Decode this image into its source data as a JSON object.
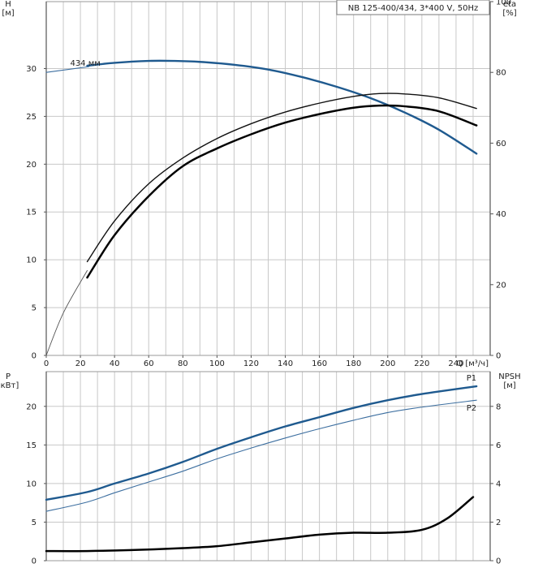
{
  "chart_data": [
    {
      "type": "line",
      "title": "NB 125-400/434, 3*400 V, 50Hz",
      "xlabel": "Q [м³/ч]",
      "ylabel": "H",
      "ylabel_unit": "[м]",
      "y2label": "eta",
      "y2label_unit": "[%]",
      "xlim": [
        0,
        260
      ],
      "ylim": [
        0,
        37
      ],
      "y2lim": [
        0,
        100
      ],
      "x_ticks": [
        "0",
        "20",
        "40",
        "60",
        "80",
        "100",
        "120",
        "140",
        "160",
        "180",
        "200",
        "220",
        "240"
      ],
      "y_ticks": [
        "0",
        "5",
        "10",
        "15",
        "20",
        "25",
        "30"
      ],
      "y2_ticks": [
        "0",
        "20",
        "40",
        "60",
        "80",
        "100"
      ],
      "grid": true,
      "annotation": "434 мм",
      "series": [
        {
          "axis": "left",
          "style": "thin-blue",
          "x": [
            0,
            25
          ],
          "y": [
            29.6,
            30.2
          ]
        },
        {
          "axis": "left",
          "style": "bold-blue",
          "x": [
            24,
            40,
            60,
            75,
            90,
            110,
            130,
            150,
            170,
            190,
            210,
            230,
            252
          ],
          "y": [
            30.3,
            30.6,
            30.8,
            30.8,
            30.7,
            30.4,
            29.9,
            29.1,
            28.1,
            26.9,
            25.4,
            23.6,
            21.1
          ]
        },
        {
          "axis": "right",
          "style": "thin-black",
          "x": [
            0,
            10,
            24
          ],
          "y": [
            0,
            12,
            24
          ]
        },
        {
          "axis": "right",
          "style": "medium-black",
          "x": [
            24,
            40,
            60,
            80,
            100,
            120,
            140,
            160,
            180,
            195,
            210,
            230,
            252
          ],
          "y": [
            26.5,
            38,
            48.5,
            55.8,
            61.3,
            65.5,
            68.8,
            71.3,
            73.2,
            74,
            73.9,
            72.8,
            69.8
          ]
        },
        {
          "axis": "right",
          "style": "bold-black",
          "x": [
            24,
            40,
            60,
            80,
            100,
            120,
            140,
            160,
            180,
            195,
            210,
            230,
            252
          ],
          "y": [
            22,
            34,
            45,
            53.5,
            58.5,
            62.5,
            65.8,
            68.2,
            70,
            70.6,
            70.4,
            69,
            65
          ]
        }
      ]
    },
    {
      "type": "line",
      "ylabel": "P",
      "ylabel_unit": "[кВт]",
      "y2label": "NPSH",
      "y2label_unit": "[м]",
      "xlim": [
        0,
        260
      ],
      "ylim": [
        0,
        24.5
      ],
      "y2lim": [
        0,
        9.8
      ],
      "y_ticks": [
        "0",
        "5",
        "10",
        "15",
        "20"
      ],
      "y2_ticks": [
        "0",
        "2",
        "4",
        "6",
        "8"
      ],
      "grid": true,
      "series": [
        {
          "name": "P1",
          "axis": "left",
          "style": "bold-blue",
          "x": [
            0,
            24,
            40,
            60,
            80,
            100,
            120,
            140,
            160,
            180,
            200,
            220,
            252
          ],
          "y": [
            7.9,
            8.9,
            10,
            11.3,
            12.8,
            14.5,
            16,
            17.4,
            18.6,
            19.8,
            20.8,
            21.6,
            22.6
          ]
        },
        {
          "name": "P2",
          "axis": "left",
          "style": "thin-blue",
          "x": [
            0,
            24,
            40,
            60,
            80,
            100,
            120,
            140,
            160,
            180,
            200,
            220,
            252
          ],
          "y": [
            6.4,
            7.6,
            8.8,
            10.2,
            11.6,
            13.2,
            14.6,
            15.9,
            17.1,
            18.2,
            19.2,
            19.9,
            20.8
          ]
        },
        {
          "axis": "right",
          "style": "bold-black",
          "x": [
            0,
            24,
            50,
            80,
            100,
            120,
            140,
            160,
            180,
            200,
            220,
            235,
            250
          ],
          "y": [
            0.5,
            0.5,
            0.55,
            0.65,
            0.75,
            0.95,
            1.15,
            1.35,
            1.45,
            1.45,
            1.6,
            2.2,
            3.3
          ]
        }
      ]
    }
  ]
}
